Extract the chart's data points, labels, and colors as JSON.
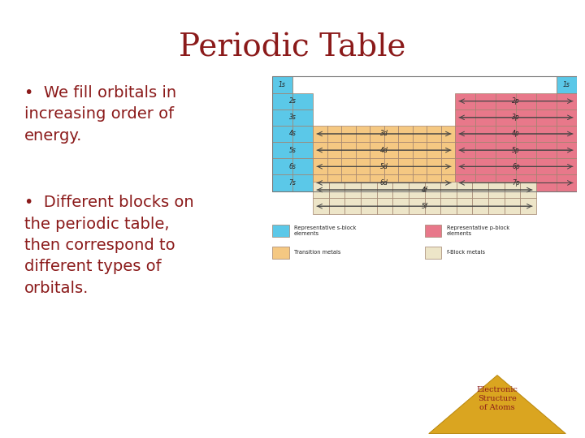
{
  "title": "Periodic Table",
  "title_color": "#8B1A1A",
  "title_fontsize": 28,
  "bg_color": "#FFFFFF",
  "bullet_color": "#8B1A1A",
  "bullet_fontsize": 14,
  "bullet1": "We fill orbitals in\nincreasing order of\nenergy.",
  "bullet2": "Different blocks on\nthe periodic table,\nthen correspond to\ndifferent types of\norbitals.",
  "s_block_color": "#5BC8E8",
  "p_block_color": "#E8788A",
  "d_block_color": "#F5C882",
  "f_block_color": "#EDE5C8",
  "grid_color": "#A0826D",
  "triangle_color": "#DAA520",
  "triangle_edge_color": "#B8860B",
  "corner_text": "Electronic\nStructure\nof Atoms",
  "corner_text_color": "#8B1A1A",
  "legend_label_s": "Representative s-block\nelements",
  "legend_label_p": "Representative p-block\nelements",
  "legend_label_d": "Transition metals",
  "legend_label_f": "f-Block metals"
}
